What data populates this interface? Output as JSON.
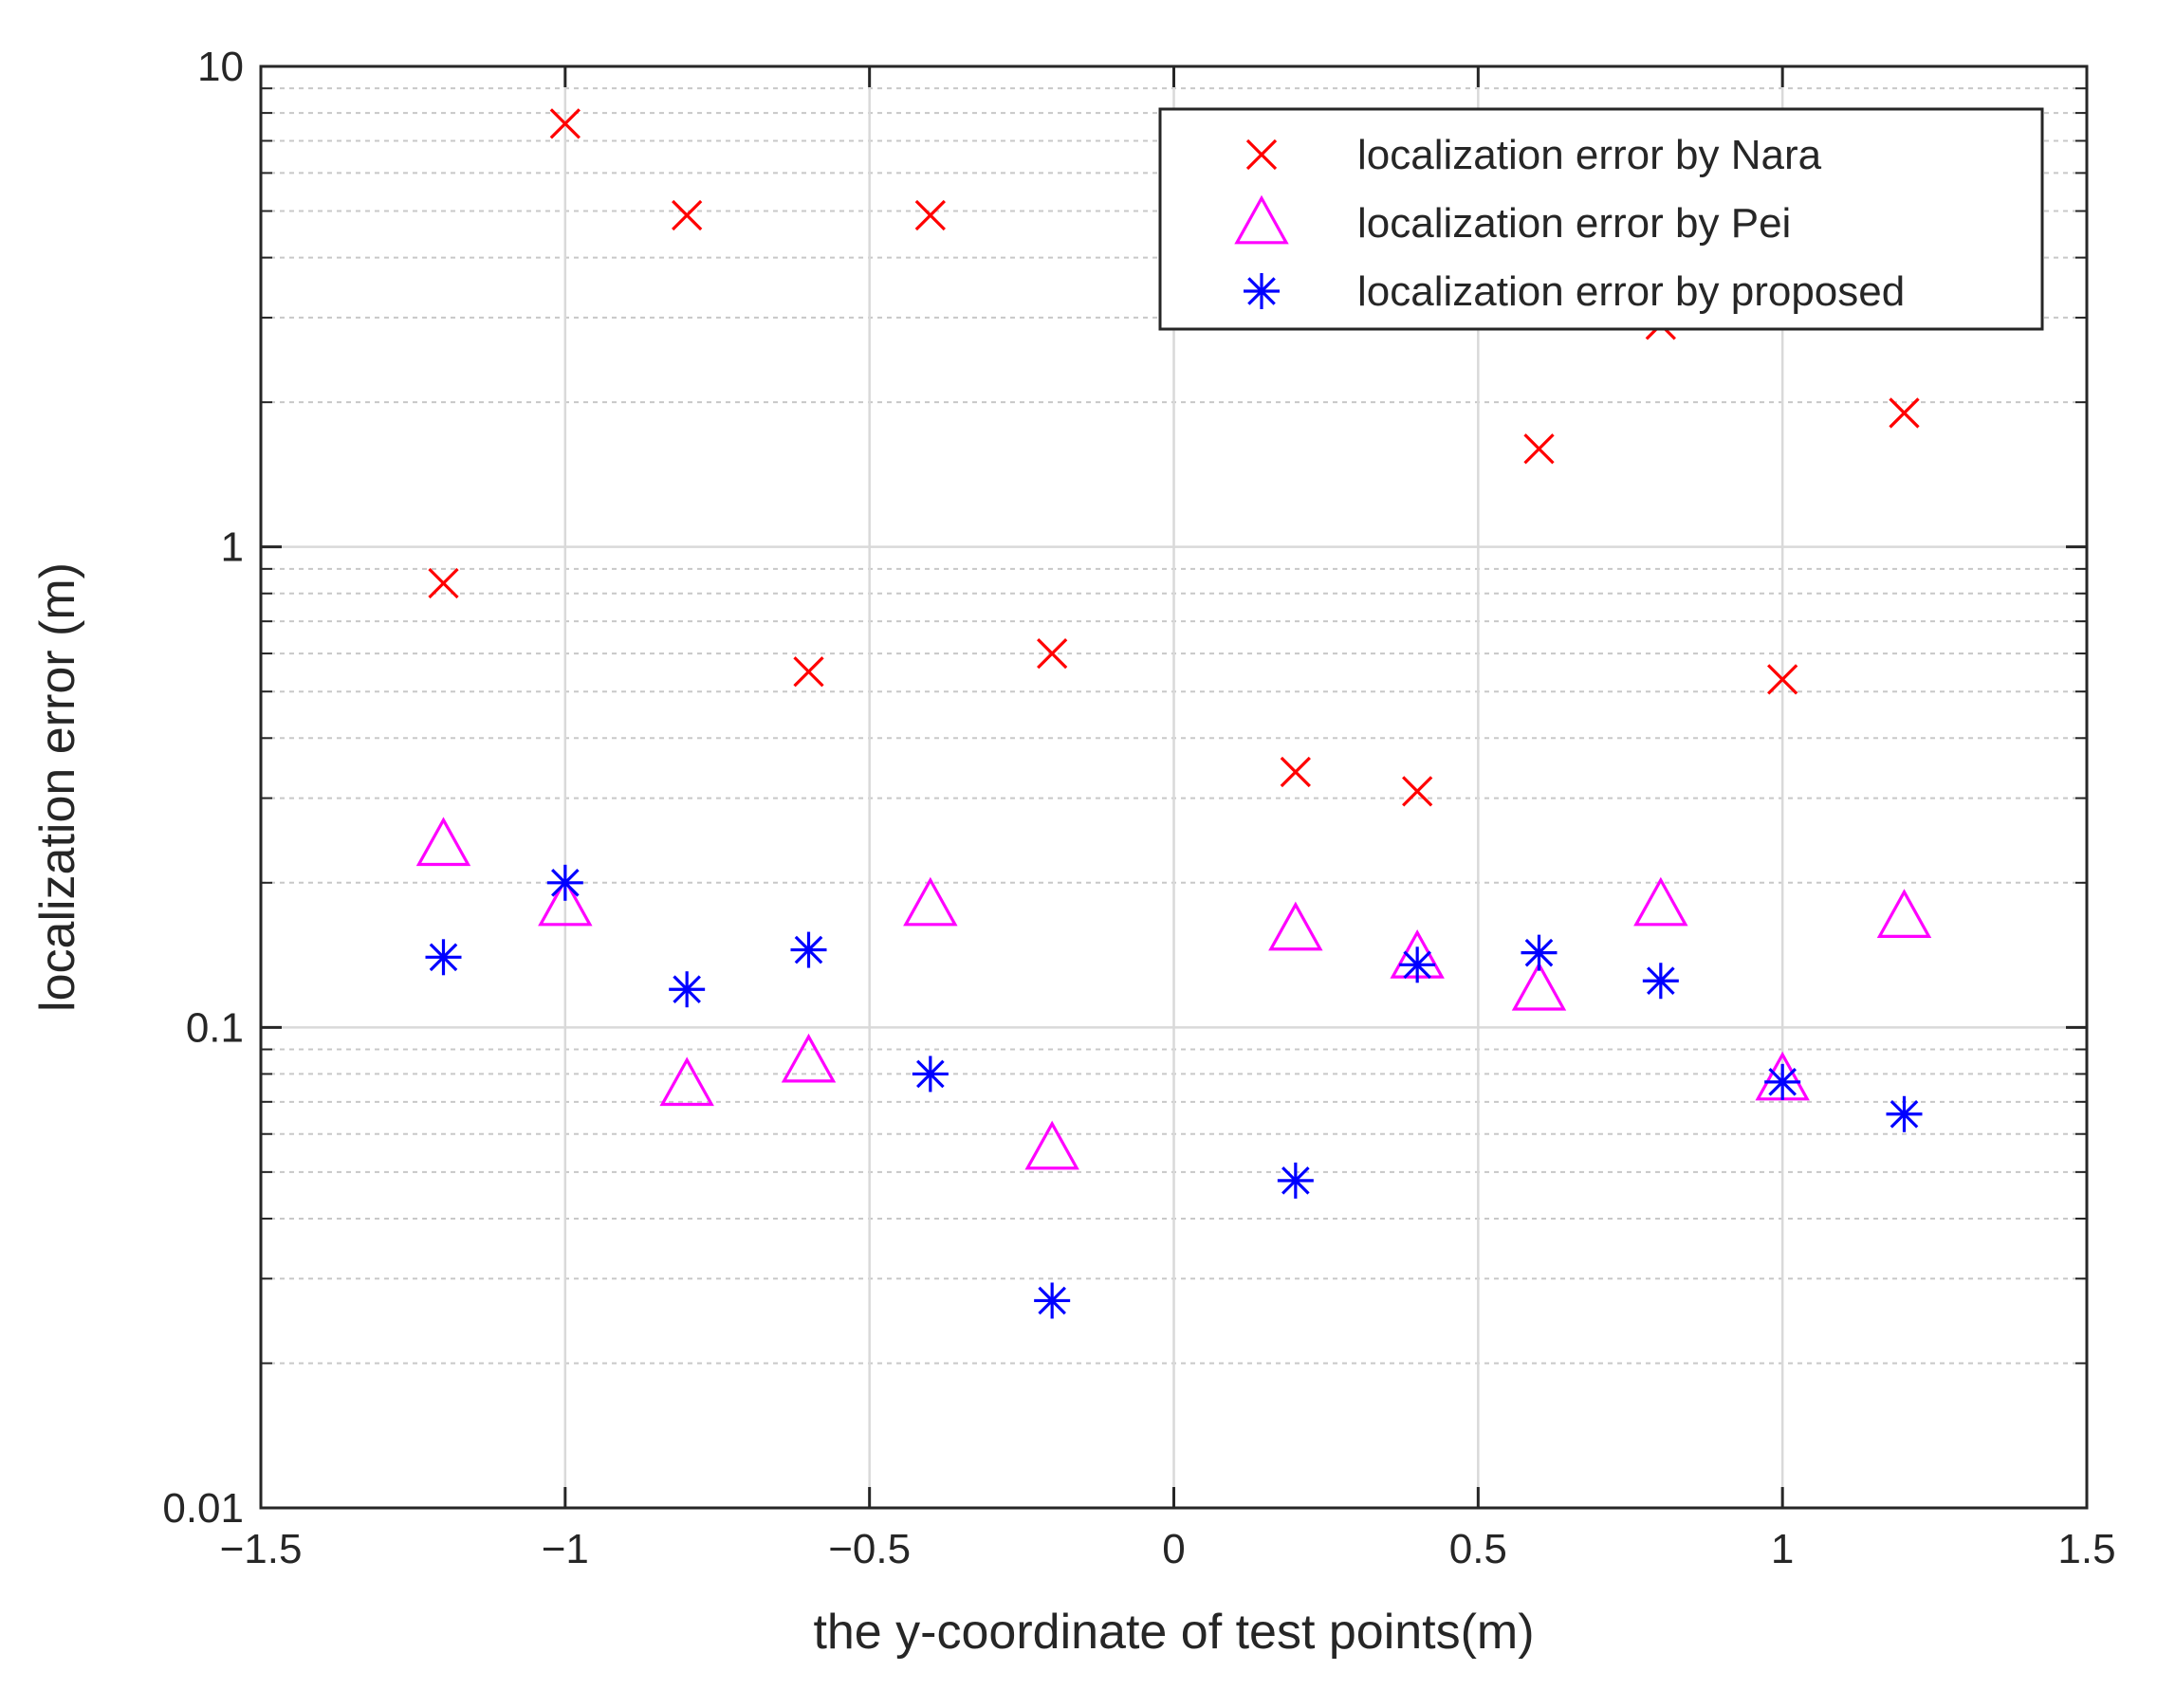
{
  "chart_data": {
    "type": "scatter",
    "xlabel": "the y-coordinate of test points(m)",
    "ylabel": "localization error (m)",
    "xlim": [
      -1.5,
      1.5
    ],
    "ylim": [
      0.01,
      10
    ],
    "yscale": "log",
    "grid": true,
    "legend_position": "top-right",
    "x_ticks": [
      -1.5,
      -1,
      -0.5,
      0,
      0.5,
      1,
      1.5
    ],
    "x_tick_labels": [
      "−1.5",
      "−1",
      "−0.5",
      "0",
      "0.5",
      "1",
      "1.5"
    ],
    "y_ticks": [
      0.01,
      0.1,
      1,
      10
    ],
    "y_tick_labels": [
      "0.01",
      "0.1",
      "1",
      "10"
    ],
    "series": [
      {
        "name": "localization error by Nara",
        "marker": "x",
        "color": "#ff0000",
        "x": [
          -1.2,
          -1.0,
          -0.8,
          -0.6,
          -0.4,
          -0.2,
          0.2,
          0.4,
          0.6,
          0.8,
          1.0,
          1.2
        ],
        "y": [
          0.84,
          7.6,
          4.9,
          0.55,
          4.9,
          0.6,
          0.34,
          0.31,
          1.6,
          2.9,
          0.53,
          1.9
        ]
      },
      {
        "name": "localization error by Pei",
        "marker": "triangle",
        "color": "#ff00ff",
        "x": [
          -1.2,
          -1.0,
          -0.8,
          -0.6,
          -0.4,
          -0.2,
          0.2,
          0.4,
          0.6,
          0.8,
          1.0,
          1.2
        ],
        "y": [
          0.24,
          0.18,
          0.076,
          0.085,
          0.18,
          0.056,
          0.16,
          0.14,
          0.12,
          0.18,
          0.078,
          0.17
        ]
      },
      {
        "name": "localization error by proposed",
        "marker": "asterisk",
        "color": "#0000ff",
        "x": [
          -1.2,
          -1.0,
          -0.8,
          -0.6,
          -0.4,
          -0.2,
          0.2,
          0.4,
          0.6,
          0.8,
          1.0,
          1.2
        ],
        "y": [
          0.14,
          0.2,
          0.12,
          0.145,
          0.08,
          0.027,
          0.048,
          0.135,
          0.143,
          0.125,
          0.077,
          0.066
        ]
      }
    ]
  }
}
